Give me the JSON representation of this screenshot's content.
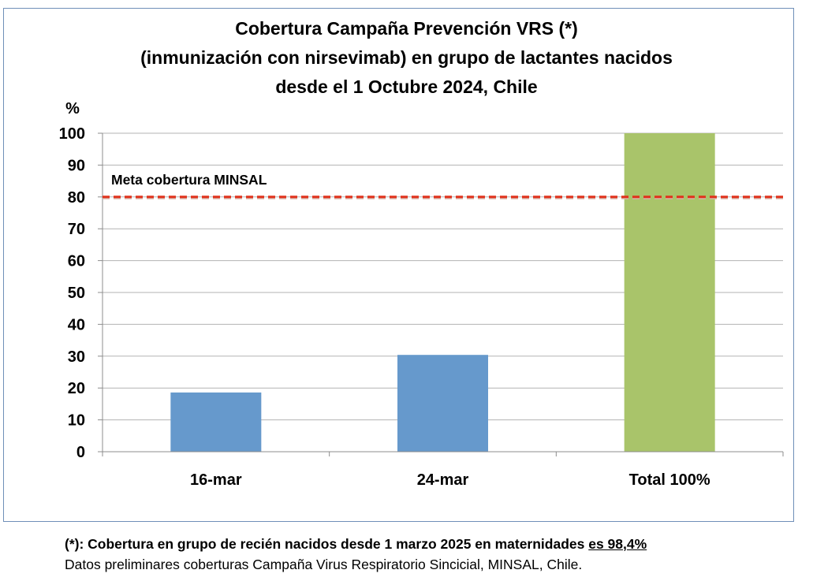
{
  "chart_data": {
    "type": "bar",
    "title_lines": [
      "Cobertura Campaña Prevención VRS (*)",
      "(inmunización con nirsevimab) en grupo de lactantes nacidos",
      "desde el 1 Octubre 2024, Chile"
    ],
    "ylabel": "%",
    "categories": [
      "16-mar",
      "24-mar",
      "Total 100%"
    ],
    "values": [
      18.6,
      30.4,
      100
    ],
    "bar_colors": [
      "#6699cc",
      "#6699cc",
      "#a9c46a"
    ],
    "ylim": [
      0,
      100
    ],
    "yticks": [
      "0",
      "10",
      "20",
      "30",
      "40",
      "50",
      "60",
      "70",
      "80",
      "90",
      "100"
    ],
    "grid": true,
    "reference_line": {
      "value": 80,
      "label": "Meta cobertura MINSAL",
      "color": "#e0321c"
    }
  },
  "footnote": {
    "line1_bold": "(*): Cobertura en grupo de recién nacidos desde 1 marzo 2025 en maternidades ",
    "line1_underlined": "es 98,4%",
    "line2": "Datos preliminares coberturas Campaña Virus Respiratorio Sincicial, MINSAL, Chile."
  }
}
